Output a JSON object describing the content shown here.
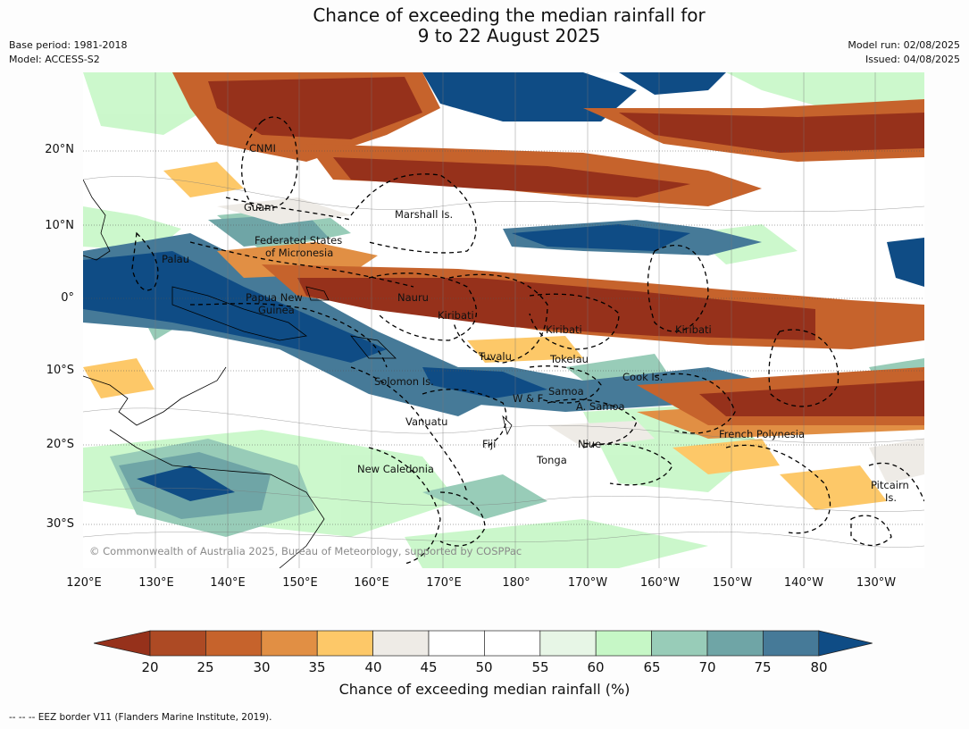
{
  "title_line1": "Chance of exceeding the median rainfall for",
  "title_line2": "9 to 22 August 2025",
  "base_period": "Base period: 1981-2018",
  "model": "Model: ACCESS-S2",
  "model_run": "Model run: 02/08/2025",
  "issued": "Issued: 04/08/2025",
  "lat_ticks": [
    "20°N",
    "10°N",
    "0°",
    "10°S",
    "20°S",
    "30°S"
  ],
  "lon_ticks": [
    "120°E",
    "130°E",
    "140°E",
    "150°E",
    "160°E",
    "170°E",
    "180°",
    "170°W",
    "160°W",
    "150°W",
    "140°W",
    "130°W"
  ],
  "places": {
    "cnmi": "CNMI",
    "guam": "Guam",
    "marshall": "Marshall Is.",
    "fsm1": "Federated States",
    "fsm2": "of Micronesia",
    "palau": "Palau",
    "png1": "Papua New",
    "png2": "Guinea",
    "nauru": "Nauru",
    "kiribati_w": "Kiribati",
    "kiribati_c": "Kiribati",
    "kiribati_e": "Kiribati",
    "tuvalu": "Tuvalu",
    "tokelau": "Tokelau",
    "cook": "Cook Is.",
    "solomon": "Solomon Is.",
    "samoa": "Samoa",
    "wf": "W & F",
    "asamoa": "A. Samoa",
    "vanuatu": "Vanuatu",
    "fiji": "Fiji",
    "niue": "Niue",
    "tonga": "Tonga",
    "frenchpoly": "French Polynesia",
    "newcal": "New Caledonia",
    "pitcairn1": "Pitcairn",
    "pitcairn2": "Is."
  },
  "copyright": "© Commonwealth of Australia 2025, Bureau of Meteorology, supported by COSPPac",
  "colorbar": {
    "ticks": [
      "20",
      "25",
      "30",
      "35",
      "40",
      "45",
      "50",
      "55",
      "60",
      "65",
      "70",
      "75",
      "80"
    ],
    "colors": [
      "#96311b",
      "#ad4a24",
      "#c6632c",
      "#e18f44",
      "#fdc868",
      "#eeebe6",
      "#ffffff",
      "#ffffff",
      "#e7f6e6",
      "#c6f7c6",
      "#98ccb8",
      "#6fa5a6",
      "#467a98",
      "#0f4c85"
    ],
    "label": "Chance of exceeding median rainfall (%)"
  },
  "eez_note": "-- -- -- EEZ border V11 (Flanders Marine Institute, 2019)."
}
